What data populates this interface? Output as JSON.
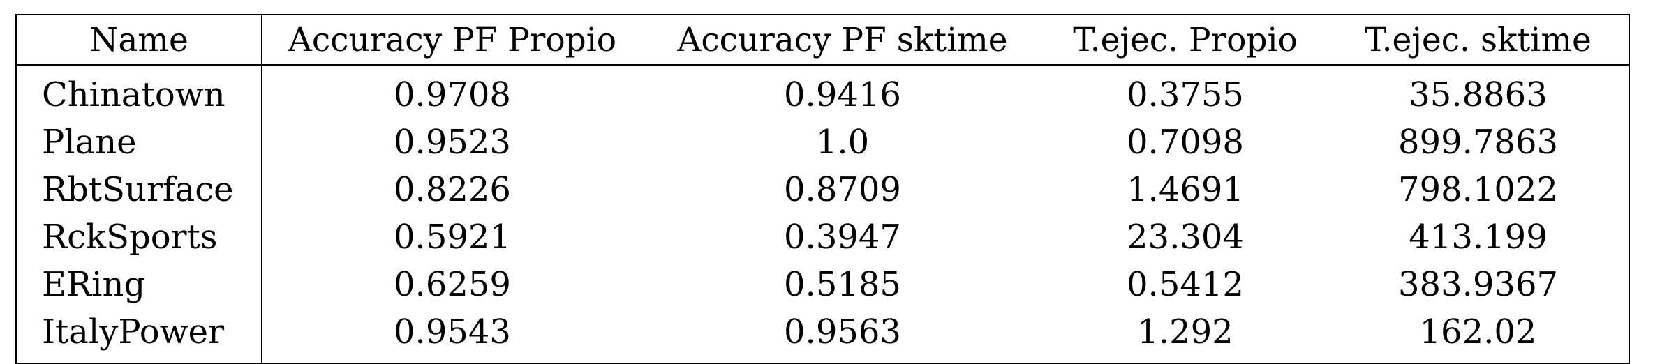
{
  "table": {
    "headers": [
      "Name",
      "Accuracy PF Propio",
      "Accuracy PF sktime",
      "T.ejec. Propio",
      "T.ejec. sktime"
    ],
    "rows": [
      [
        "Chinatown",
        "0.9708",
        "0.9416",
        "0.3755",
        "35.8863"
      ],
      [
        "Plane",
        "0.9523",
        "1.0",
        "0.7098",
        "899.7863"
      ],
      [
        "RbtSurface",
        "0.8226",
        "0.8709",
        "1.4691",
        "798.1022"
      ],
      [
        "RckSports",
        "0.5921",
        "0.3947",
        "23.304",
        "413.199"
      ],
      [
        "ERing",
        "0.6259",
        "0.5185",
        "0.5412",
        "383.9367"
      ],
      [
        "ItalyPower",
        "0.9543",
        "0.9563",
        "1.292",
        "162.02"
      ]
    ]
  }
}
